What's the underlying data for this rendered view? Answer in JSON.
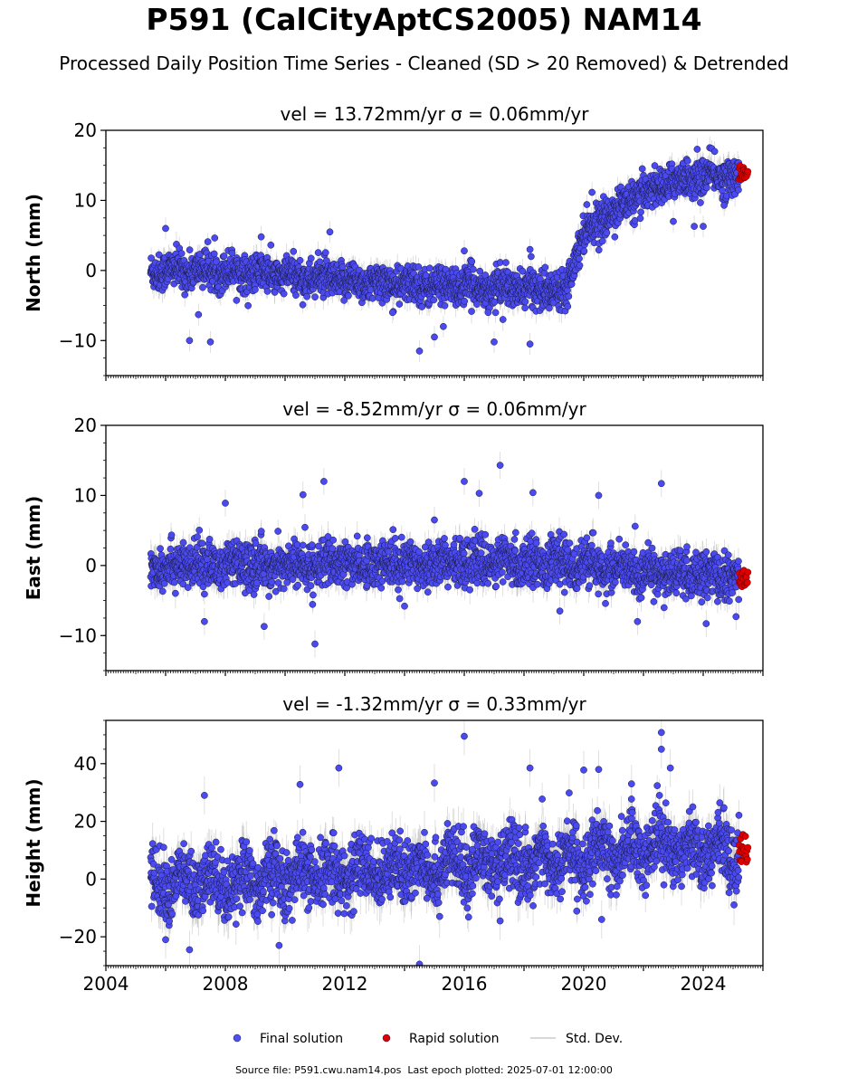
{
  "figure": {
    "title": "P591 (CalCityAptCS2005) NAM14",
    "subtitle": "Processed Daily Position Time Series - Cleaned (SD > 20 Removed) & Detrended",
    "footer_source": "Source file: P591.cwu.nam14.pos",
    "footer_epoch": "Last epoch plotted: 2025-07-01 12:00:00"
  },
  "legend": {
    "placement": "bottom-center",
    "entries": [
      {
        "label": "Final solution",
        "color": "#5050f0",
        "marker": "circle"
      },
      {
        "label": "Rapid solution",
        "color": "#e00000",
        "marker": "circle"
      },
      {
        "label": "Std. Dev.",
        "color": "#cccccc",
        "marker": "line"
      }
    ]
  },
  "colors": {
    "final": "#4a4af0",
    "final_edge": "#1a1a40",
    "rapid": "#e00000",
    "errorbar": "#b8b8b8"
  },
  "chart_data": [
    {
      "type": "scatter",
      "panel": "north",
      "title": "vel = 13.72mm/yr   σ = 0.06mm/yr",
      "ylabel": "North (mm)",
      "xlim": [
        2004,
        2026
      ],
      "ylim": [
        -15,
        20
      ],
      "yticks": [
        -10,
        0,
        10,
        20
      ],
      "xticks": [
        2004,
        2008,
        2012,
        2016,
        2020,
        2024
      ],
      "data_start": 2005.5,
      "rapid_start": 2025.2,
      "data_end": 2025.5,
      "trend_x": [
        2005.5,
        2008.0,
        2012.0,
        2014.0,
        2016.0,
        2018.0,
        2019.4,
        2019.7,
        2020.0,
        2021.0,
        2022.0,
        2023.0,
        2024.0,
        2025.5
      ],
      "trend_y": [
        0.0,
        0.0,
        -1.5,
        -2.0,
        -2.3,
        -2.6,
        -2.8,
        2.0,
        5.5,
        8.5,
        11.0,
        12.8,
        13.4,
        13.6
      ],
      "scatter_sd": 1.3,
      "outliers": [
        [
          2006.0,
          6.0
        ],
        [
          2006.8,
          -10.0
        ],
        [
          2007.5,
          -10.2
        ],
        [
          2009.2,
          4.8
        ],
        [
          2011.5,
          5.5
        ],
        [
          2014.5,
          -11.5
        ],
        [
          2015.0,
          -9.5
        ],
        [
          2016.0,
          2.8
        ],
        [
          2017.0,
          -10.2
        ],
        [
          2018.2,
          3.0
        ],
        [
          2018.2,
          -10.5
        ],
        [
          2023.0,
          7.0
        ],
        [
          2023.7,
          6.3
        ],
        [
          2024.0,
          6.3
        ],
        [
          2023.8,
          17.3
        ],
        [
          2024.7,
          9.3
        ],
        [
          2007.1,
          -6.3
        ],
        [
          2013.6,
          -6.0
        ],
        [
          2015.3,
          -8.0
        ],
        [
          2016.8,
          -6.0
        ]
      ]
    },
    {
      "type": "scatter",
      "panel": "east",
      "title": "vel = -8.52mm/yr   σ = 0.06mm/yr",
      "ylabel": "East (mm)",
      "xlim": [
        2004,
        2026
      ],
      "ylim": [
        -15,
        20
      ],
      "yticks": [
        -10,
        0,
        10,
        20
      ],
      "xticks": [
        2004,
        2008,
        2012,
        2016,
        2020,
        2024
      ],
      "data_start": 2005.5,
      "rapid_start": 2025.2,
      "data_end": 2025.5,
      "trend_x": [
        2005.5,
        2010.0,
        2016.0,
        2019.0,
        2022.0,
        2025.5
      ],
      "trend_y": [
        0.0,
        0.0,
        0.5,
        0.5,
        -1.0,
        -1.8
      ],
      "scatter_sd": 1.6,
      "outliers": [
        [
          2011.3,
          12.0
        ],
        [
          2017.2,
          14.3
        ],
        [
          2016.0,
          12.0
        ],
        [
          2022.6,
          11.7
        ],
        [
          2018.3,
          10.4
        ],
        [
          2016.5,
          10.3
        ],
        [
          2011.0,
          -11.2
        ],
        [
          2009.3,
          -8.7
        ],
        [
          2024.1,
          -8.3
        ],
        [
          2025.1,
          -7.3
        ],
        [
          2007.3,
          -8.0
        ],
        [
          2021.8,
          -8.0
        ],
        [
          2020.5,
          10.0
        ],
        [
          2010.6,
          10.1
        ],
        [
          2014.0,
          -5.8
        ],
        [
          2019.2,
          -6.5
        ],
        [
          2008.0,
          8.9
        ],
        [
          2015.0,
          6.5
        ]
      ]
    },
    {
      "type": "scatter",
      "panel": "height",
      "title": "vel = -1.32mm/yr   σ = 0.33mm/yr",
      "ylabel": "Height (mm)",
      "xlim": [
        2004,
        2026
      ],
      "ylim": [
        -30,
        55
      ],
      "yticks": [
        -20,
        0,
        20,
        40
      ],
      "xticks": [
        2004,
        2008,
        2012,
        2016,
        2020,
        2024
      ],
      "data_start": 2005.5,
      "rapid_start": 2025.2,
      "data_end": 2025.5,
      "trend_x": [
        2005.5,
        2008.0,
        2012.0,
        2016.0,
        2020.0,
        2022.5,
        2025.5
      ],
      "trend_y": [
        -2.0,
        -1.0,
        2.0,
        5.0,
        7.0,
        12.0,
        9.0
      ],
      "scatter_sd": 5.5,
      "outliers": [
        [
          2016.0,
          49.5
        ],
        [
          2022.6,
          50.8
        ],
        [
          2022.6,
          45.0
        ],
        [
          2014.5,
          -29.5
        ],
        [
          2022.9,
          38.5
        ],
        [
          2018.2,
          38.5
        ],
        [
          2011.8,
          38.5
        ],
        [
          2020.0,
          37.8
        ],
        [
          2020.5,
          38.0
        ],
        [
          2006.0,
          -21.0
        ],
        [
          2006.8,
          -24.5
        ],
        [
          2009.8,
          -23.0
        ],
        [
          2010.5,
          32.8
        ],
        [
          2015.0,
          33.3
        ],
        [
          2007.3,
          29.0
        ],
        [
          2021.6,
          33.0
        ],
        [
          2020.6,
          -14.0
        ],
        [
          2017.2,
          -14.5
        ]
      ]
    }
  ]
}
